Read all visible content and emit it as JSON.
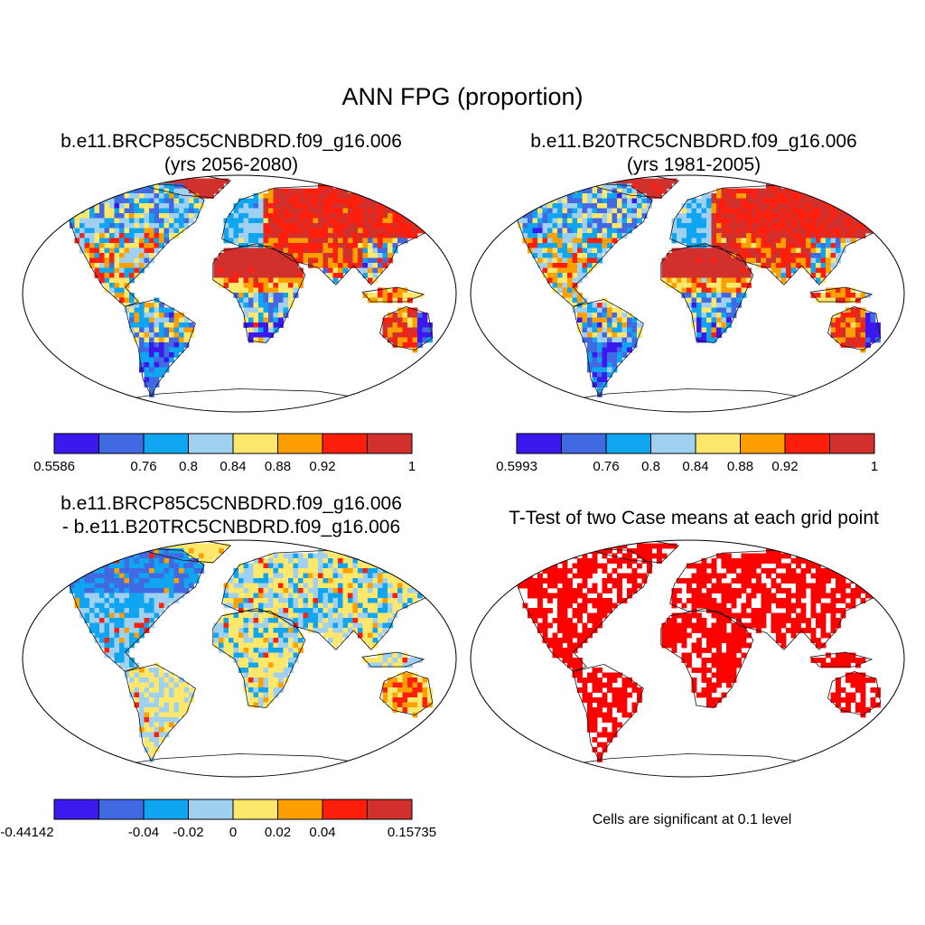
{
  "title": "ANN FPG (proportion)",
  "colors": {
    "levels": [
      "#3a18ee",
      "#4169e1",
      "#10a5f0",
      "#9fd0f0",
      "#fde86b",
      "#fe9f00",
      "#fe1e0c",
      "#d2302d"
    ],
    "significant": "#ff0000"
  },
  "panels": [
    {
      "title_line1": "b.e11.BRCP85C5CNBDRD.f09_g16.006",
      "title_line2": "(yrs 2056-2080)",
      "colorbar": {
        "labels": [
          "0.5586",
          "0.76",
          "0.8",
          "0.84",
          "0.88",
          "0.92",
          "1"
        ],
        "min": 0.5586,
        "max": 1
      }
    },
    {
      "title_line1": "b.e11.B20TRC5CNBDRD.f09_g16.006",
      "title_line2": "(yrs 1981-2005)",
      "colorbar": {
        "labels": [
          "0.5993",
          "0.76",
          "0.8",
          "0.84",
          "0.88",
          "0.92",
          "1"
        ],
        "min": 0.5993,
        "max": 1
      }
    },
    {
      "title_line1": "b.e11.BRCP85C5CNBDRD.f09_g16.006",
      "title_line2": "- b.e11.B20TRC5CNBDRD.f09_g16.006",
      "colorbar": {
        "labels": [
          "-0.44142",
          "-0.04",
          "-0.02",
          "0",
          "0.02",
          "0.04",
          "0.15735"
        ],
        "min": -0.44142,
        "max": 0.15735
      }
    },
    {
      "title_line1": "T-Test of two Case means at each grid point",
      "note": "Cells are significant at 0.1 level"
    }
  ]
}
